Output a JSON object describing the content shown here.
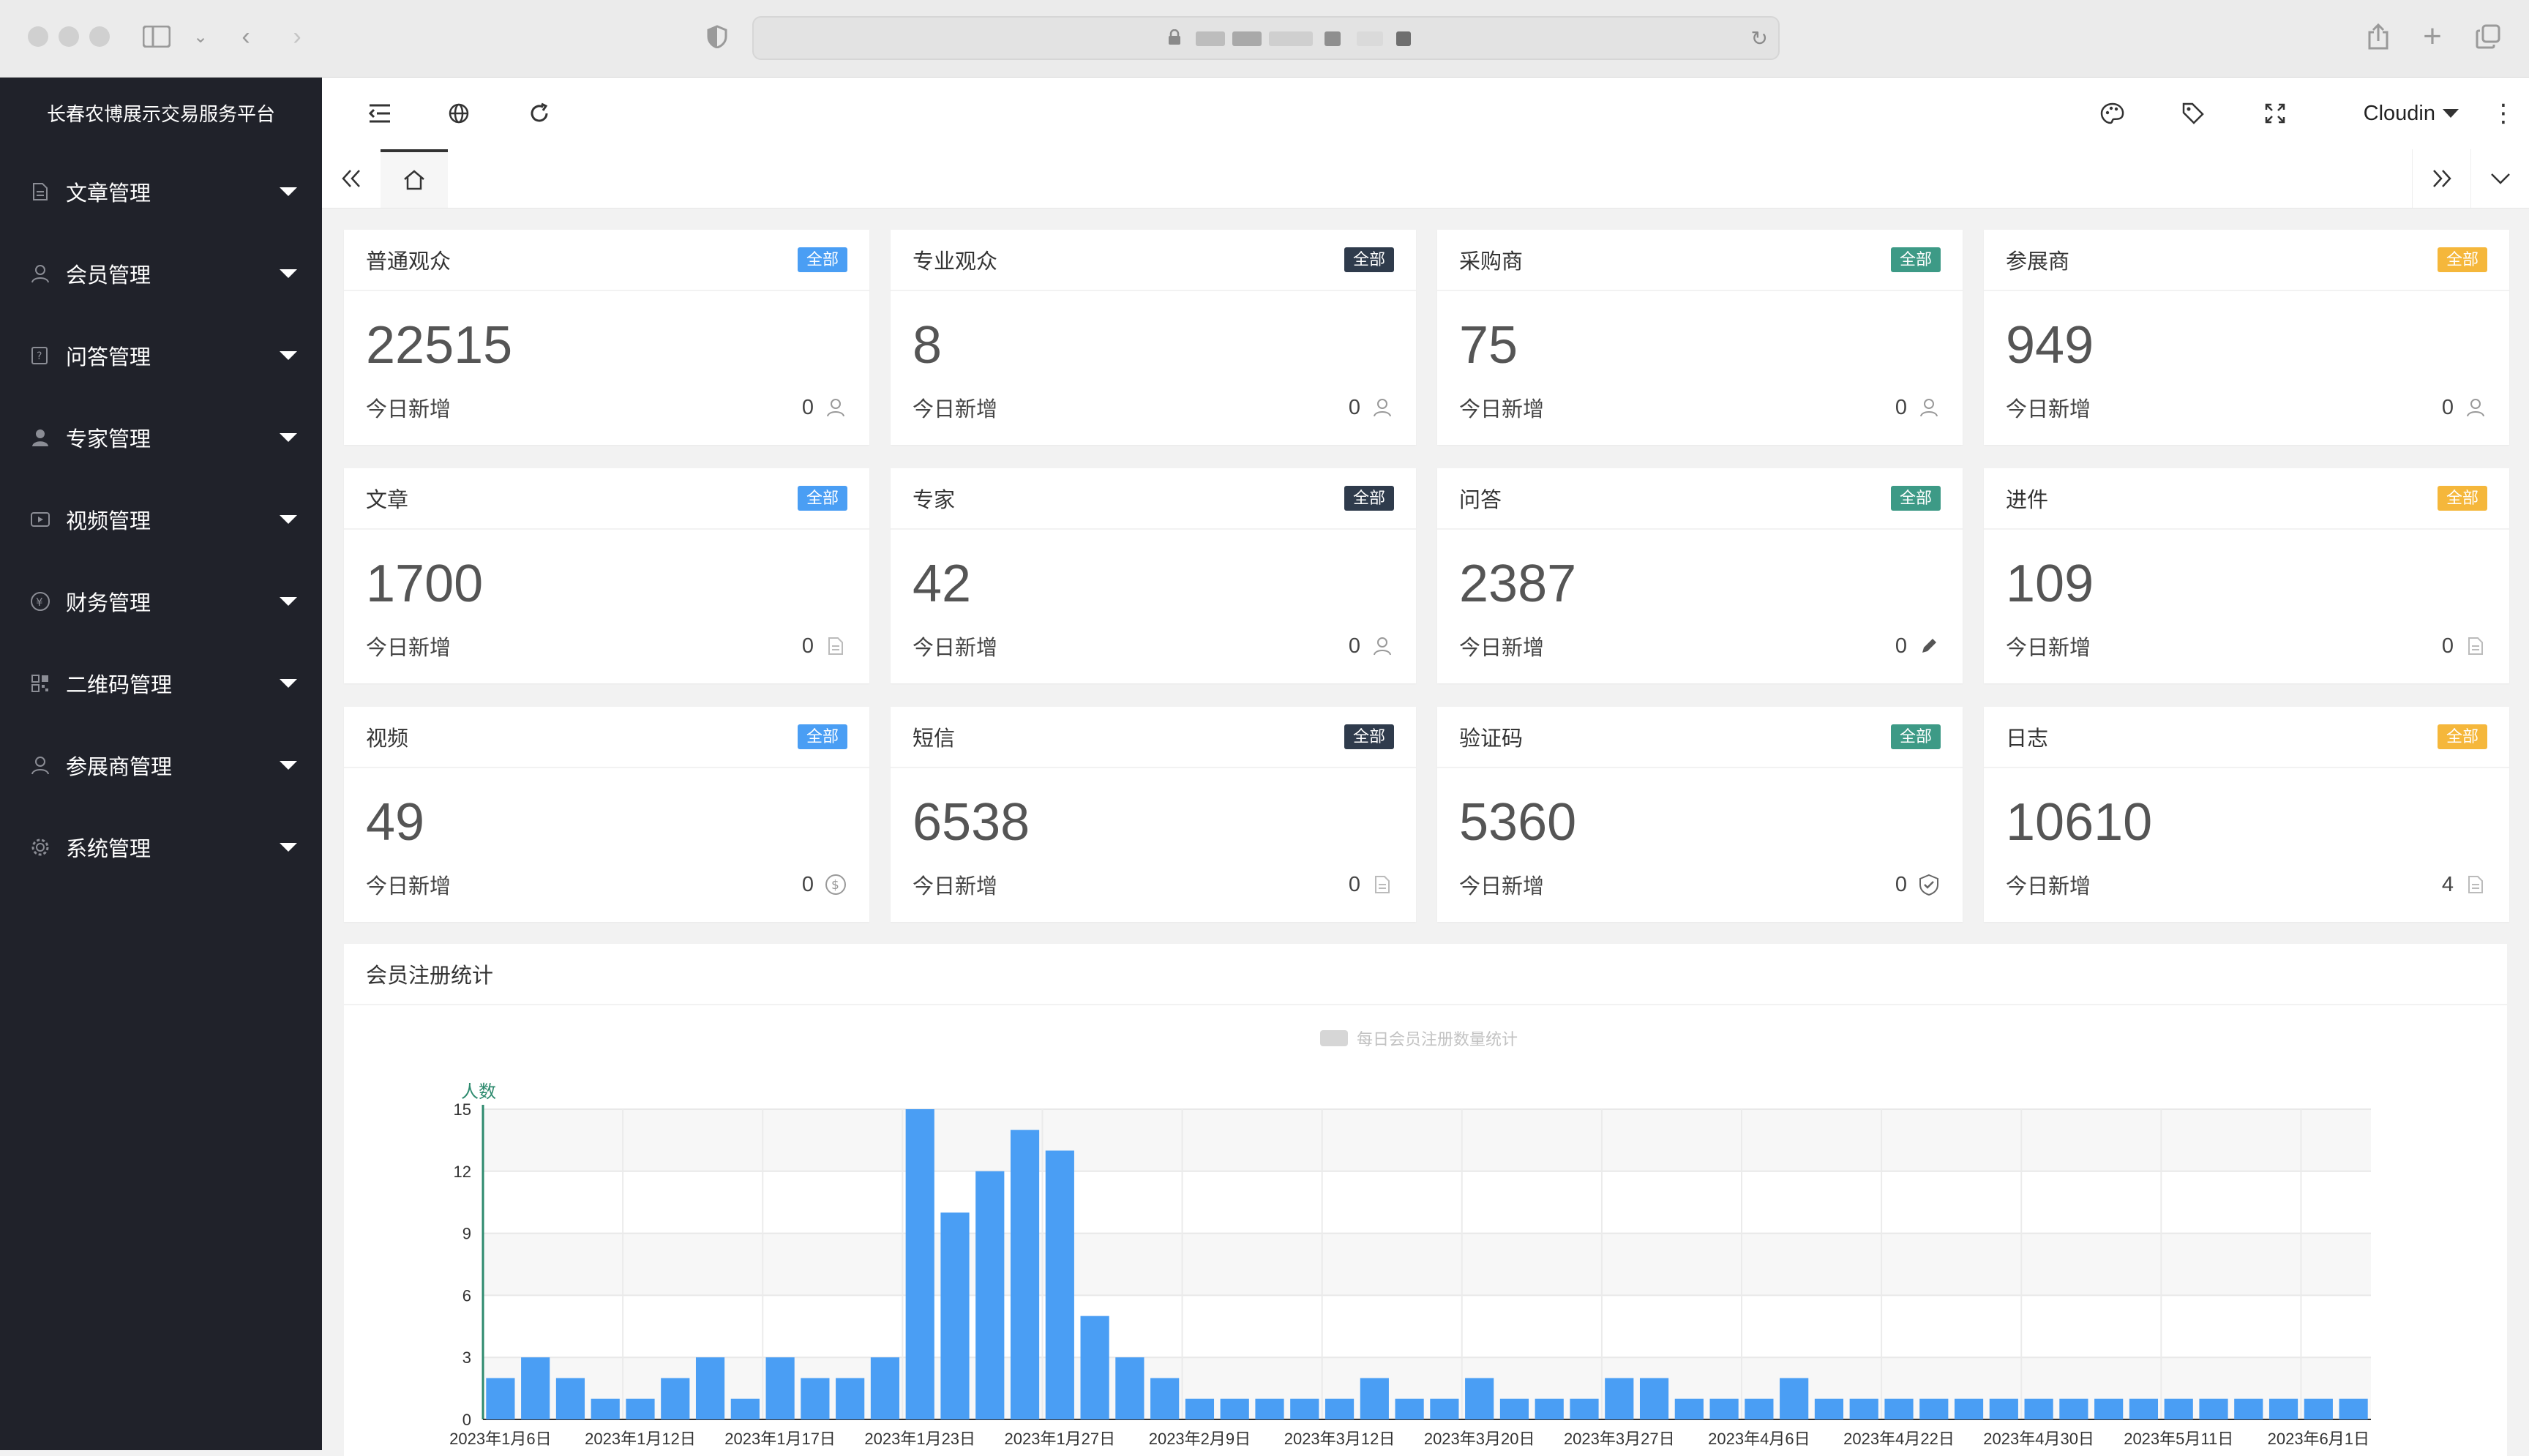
{
  "browser": {
    "address_text": ""
  },
  "sidebar": {
    "brand": "长春农博展示交易服务平台",
    "items": [
      {
        "label": "文章管理",
        "icon": "document-icon"
      },
      {
        "label": "会员管理",
        "icon": "user-icon"
      },
      {
        "label": "问答管理",
        "icon": "qa-icon"
      },
      {
        "label": "专家管理",
        "icon": "person-icon"
      },
      {
        "label": "视频管理",
        "icon": "video-icon"
      },
      {
        "label": "财务管理",
        "icon": "yen-icon"
      },
      {
        "label": "二维码管理",
        "icon": "qrcode-icon"
      },
      {
        "label": "参展商管理",
        "icon": "user-icon"
      },
      {
        "label": "系统管理",
        "icon": "gear-icon"
      }
    ]
  },
  "header": {
    "user": "Cloudin"
  },
  "cards": [
    {
      "title": "普通观众",
      "badge": "全部",
      "badge_color": "#4a9ef4",
      "value": "22515",
      "sub": "今日新增",
      "today": "0",
      "icon": "user-icon"
    },
    {
      "title": "专业观众",
      "badge": "全部",
      "badge_color": "#2f3b4c",
      "value": "8",
      "sub": "今日新增",
      "today": "0",
      "icon": "user-icon"
    },
    {
      "title": "采购商",
      "badge": "全部",
      "badge_color": "#3d9a86",
      "value": "75",
      "sub": "今日新增",
      "today": "0",
      "icon": "user-icon"
    },
    {
      "title": "参展商",
      "badge": "全部",
      "badge_color": "#f5b73b",
      "value": "949",
      "sub": "今日新增",
      "today": "0",
      "icon": "user-icon"
    },
    {
      "title": "文章",
      "badge": "全部",
      "badge_color": "#4a9ef4",
      "value": "1700",
      "sub": "今日新增",
      "today": "0",
      "icon": "document-icon"
    },
    {
      "title": "专家",
      "badge": "全部",
      "badge_color": "#2f3b4c",
      "value": "42",
      "sub": "今日新增",
      "today": "0",
      "icon": "user-icon"
    },
    {
      "title": "问答",
      "badge": "全部",
      "badge_color": "#3d9a86",
      "value": "2387",
      "sub": "今日新增",
      "today": "0",
      "icon": "pencil-icon"
    },
    {
      "title": "进件",
      "badge": "全部",
      "badge_color": "#f5b73b",
      "value": "109",
      "sub": "今日新增",
      "today": "0",
      "icon": "document-icon"
    },
    {
      "title": "视频",
      "badge": "全部",
      "badge_color": "#4a9ef4",
      "value": "49",
      "sub": "今日新增",
      "today": "0",
      "icon": "dollar-icon"
    },
    {
      "title": "短信",
      "badge": "全部",
      "badge_color": "#2f3b4c",
      "value": "6538",
      "sub": "今日新增",
      "today": "0",
      "icon": "document-icon"
    },
    {
      "title": "验证码",
      "badge": "全部",
      "badge_color": "#3d9a86",
      "value": "5360",
      "sub": "今日新增",
      "today": "0",
      "icon": "shield-check-icon"
    },
    {
      "title": "日志",
      "badge": "全部",
      "badge_color": "#f5b73b",
      "value": "10610",
      "sub": "今日新增",
      "today": "4",
      "icon": "document-icon"
    }
  ],
  "chart_panel_title": "会员注册统计",
  "chart_data": {
    "type": "bar",
    "title": "",
    "legend": "每日会员注册数量统计",
    "ylabel": "人数",
    "ylim": [
      0,
      15
    ],
    "yticks": [
      0,
      3,
      6,
      9,
      12,
      15
    ],
    "xtick_labels": [
      "2023年1月6日",
      "2023年1月12日",
      "2023年1月17日",
      "2023年1月23日",
      "2023年1月27日",
      "2023年2月9日",
      "2023年3月12日",
      "2023年3月20日",
      "2023年3月27日",
      "2023年4月6日",
      "2023年4月22日",
      "2023年4月30日",
      "2023年5月11日",
      "2023年6月1日"
    ],
    "values": [
      2,
      3,
      2,
      1,
      1,
      2,
      3,
      1,
      3,
      2,
      2,
      3,
      15,
      10,
      12,
      14,
      13,
      5,
      3,
      2,
      1,
      1,
      1,
      1,
      1,
      2,
      1,
      1,
      2,
      1,
      1,
      1,
      2,
      2,
      1,
      1,
      1,
      2,
      1,
      1,
      1,
      1,
      1,
      1,
      1,
      1,
      1,
      1,
      1,
      1,
      1,
      1,
      1,
      1
    ],
    "bar_color": "#4a9ef4"
  }
}
